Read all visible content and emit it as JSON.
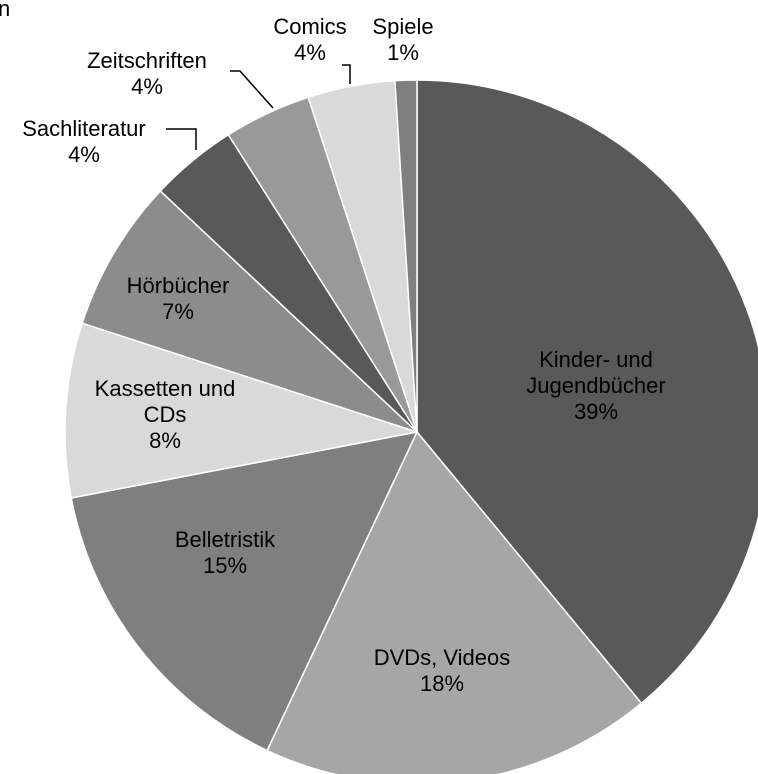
{
  "header": {
    "cut_text": "n"
  },
  "chart_data": {
    "type": "pie",
    "title": "",
    "unit": "%",
    "slices": [
      {
        "label": "Kinder- und Jugendbücher",
        "label_lines": [
          "Kinder- und",
          "Jugendbücher",
          "39%"
        ],
        "value": 39,
        "percent_label": "39%",
        "color": "#595959"
      },
      {
        "label": "DVDs, Videos",
        "label_lines": [
          "DVDs, Videos",
          "18%"
        ],
        "value": 18,
        "percent_label": "18%",
        "color": "#a6a6a6"
      },
      {
        "label": "Belletristik",
        "label_lines": [
          "Belletristik",
          "15%"
        ],
        "value": 15,
        "percent_label": "15%",
        "color": "#7f7f7f"
      },
      {
        "label": "Kassetten und CDs",
        "label_lines": [
          "Kassetten und",
          "CDs",
          "8%"
        ],
        "value": 8,
        "percent_label": "8%",
        "color": "#d9d9d9"
      },
      {
        "label": "Hörbücher",
        "label_lines": [
          "Hörbücher",
          "7%"
        ],
        "value": 7,
        "percent_label": "7%",
        "color": "#8c8c8c"
      },
      {
        "label": "Sachliteratur",
        "label_lines": [
          "Sachliteratur",
          "4%"
        ],
        "value": 4,
        "percent_label": "4%",
        "color": "#595959"
      },
      {
        "label": "Zeitschriften",
        "label_lines": [
          "Zeitschriften",
          "4%"
        ],
        "value": 4,
        "percent_label": "4%",
        "color": "#999999"
      },
      {
        "label": "Comics",
        "label_lines": [
          "Comics",
          "4%"
        ],
        "value": 4,
        "percent_label": "4%",
        "color": "#d9d9d9"
      },
      {
        "label": "Spiele",
        "label_lines": [
          "Spiele",
          "1%"
        ],
        "value": 1,
        "percent_label": "1%",
        "color": "#7f7f7f"
      }
    ]
  }
}
